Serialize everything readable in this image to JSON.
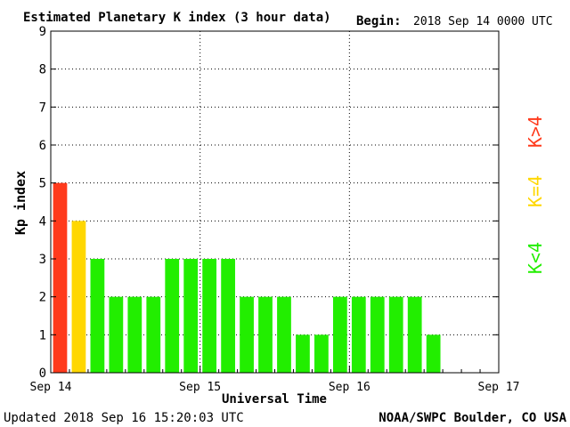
{
  "header": {
    "title": "Estimated Planetary K index (3 hour data)",
    "begin_label": "Begin:",
    "begin_value": "2018 Sep 14 0000 UTC"
  },
  "footer": {
    "updated": "Updated 2018 Sep 16 15:20:03 UTC",
    "source": "NOAA/SWPC Boulder, CO USA"
  },
  "legend": {
    "placement": "right",
    "entries": [
      {
        "label": "K>4",
        "color": "#ff3a1c"
      },
      {
        "label": "K=4",
        "color": "#ffd700"
      },
      {
        "label": "K<4",
        "color": "#22ee00"
      }
    ]
  },
  "colors": {
    "high": "#ff3a1c",
    "mid": "#ffd700",
    "low": "#22ee00",
    "grid": "#000000"
  },
  "chart_data": {
    "type": "bar",
    "title": "Estimated Planetary K index (3 hour data)",
    "xlabel": "Universal Time",
    "ylabel": "Kp index",
    "ylim": [
      0,
      9
    ],
    "yticks": [
      "0",
      "1",
      "2",
      "3",
      "4",
      "5",
      "6",
      "7",
      "8",
      "9"
    ],
    "xticks": [
      "Sep 14",
      "Sep 15",
      "Sep 16",
      "Sep 17"
    ],
    "grid": true,
    "slots_per_day": 8,
    "values": [
      5,
      4,
      3,
      2,
      2,
      2,
      3,
      3,
      3,
      3,
      2,
      2,
      2,
      1,
      1,
      2,
      2,
      2,
      2,
      2,
      1
    ]
  }
}
